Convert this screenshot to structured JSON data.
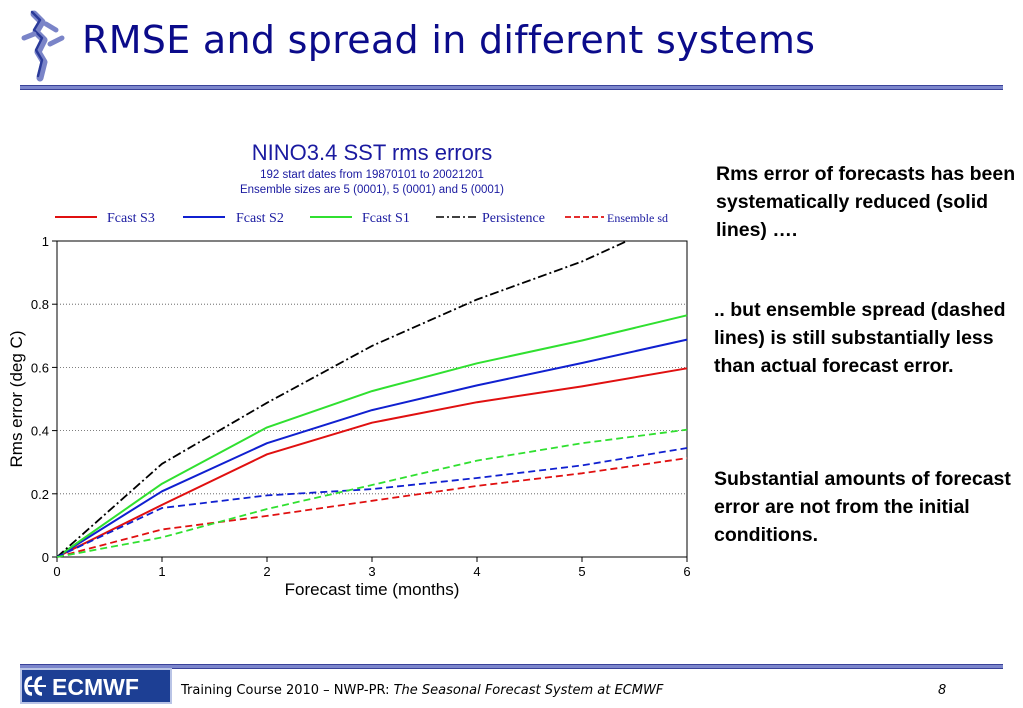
{
  "slide": {
    "title": "RMSE and spread in different systems",
    "text_1": "Rms error of forecasts has been systematically reduced (solid lines) ….",
    "text_2": ".. but ensemble spread (dashed lines) is still substantially less than actual forecast error.",
    "text_3": "Substantial amounts of forecast error are not from the initial conditions."
  },
  "footer": {
    "logo_text": "ECMWF",
    "course": "Training Course 2010 – NWP-PR: ",
    "course_title": "The Seasonal Forecast System at ECMWF",
    "page": "8"
  },
  "colors": {
    "title": "#0b0b8a",
    "rule": "#7c86cc",
    "s3": "#e01010",
    "s2": "#1020d0",
    "s1": "#30e030",
    "persistence": "#000000"
  },
  "chart_data": {
    "type": "line",
    "title": "NINO3.4 SST rms errors",
    "subtitle_1": "192 start dates from 19870101 to 20021201",
    "subtitle_2": "Ensemble sizes are  5 (0001),  5 (0001)  and  5 (0001)",
    "xlabel": "Forecast time (months)",
    "ylabel": "Rms error (deg C)",
    "xlim": [
      0,
      6
    ],
    "ylim": [
      0,
      1
    ],
    "xticks": [
      0,
      1,
      2,
      3,
      4,
      5,
      6
    ],
    "yticks": [
      0,
      0.2,
      0.4,
      0.6,
      0.8,
      1
    ],
    "ytick_labels": [
      "0",
      "0.2",
      "0.4",
      "0.6",
      "0.8",
      "1"
    ],
    "grid": "horizontal dotted",
    "series": [
      {
        "name": "Fcast S3",
        "color": "#e01010",
        "dash": "solid",
        "x": [
          0,
          1,
          2,
          3,
          4,
          5,
          6
        ],
        "values": [
          0,
          0.165,
          0.325,
          0.425,
          0.49,
          0.54,
          0.597
        ]
      },
      {
        "name": "Fcast S2",
        "color": "#1020d0",
        "dash": "solid",
        "x": [
          0,
          1,
          2,
          3,
          4,
          5,
          6
        ],
        "values": [
          0,
          0.208,
          0.36,
          0.465,
          0.543,
          0.614,
          0.688
        ]
      },
      {
        "name": "Fcast S1",
        "color": "#30e030",
        "dash": "solid",
        "x": [
          0,
          1,
          2,
          3,
          4,
          5,
          6
        ],
        "values": [
          0,
          0.232,
          0.41,
          0.525,
          0.613,
          0.685,
          0.765
        ]
      },
      {
        "name": "Persistence",
        "color": "#000000",
        "dash": "dashdot",
        "x": [
          0,
          1,
          2,
          3,
          4,
          5,
          5.43
        ],
        "values": [
          0,
          0.295,
          0.488,
          0.668,
          0.815,
          0.935,
          1.0
        ]
      },
      {
        "name": "Ensemble sd",
        "color": "#e01010",
        "dash": "dashed",
        "x": [
          0,
          1,
          2,
          3,
          4,
          5,
          6
        ],
        "values": [
          0,
          0.087,
          0.13,
          0.178,
          0.225,
          0.265,
          0.313
        ]
      },
      {
        "name": "Ensemble sd S2",
        "color": "#1020d0",
        "dash": "dashed",
        "legend": false,
        "x": [
          0,
          1,
          2,
          3,
          4,
          5,
          6
        ],
        "values": [
          0,
          0.155,
          0.195,
          0.215,
          0.25,
          0.29,
          0.345
        ]
      },
      {
        "name": "Ensemble sd S1",
        "color": "#30e030",
        "dash": "dashed",
        "legend": false,
        "x": [
          0,
          1,
          2,
          3,
          4,
          5,
          6
        ],
        "values": [
          0,
          0.062,
          0.152,
          0.228,
          0.305,
          0.36,
          0.403
        ]
      }
    ],
    "legend": [
      "Fcast S3",
      "Fcast S2",
      "Fcast S1",
      "Persistence",
      "Ensemble sd"
    ]
  }
}
